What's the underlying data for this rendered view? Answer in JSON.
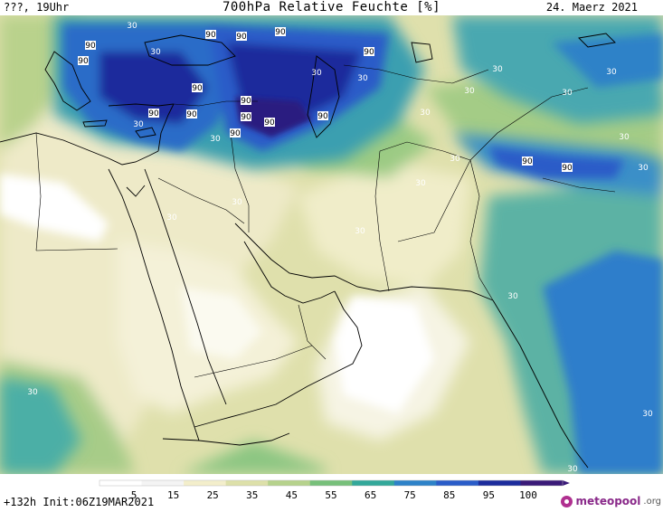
{
  "header": {
    "location": "???, 19Uhr",
    "title": "700hPa Relative Feuchte [%]",
    "date": "24. Maerz 2021"
  },
  "footer": {
    "forecast": "+132h Init:06Z19MAR2021",
    "brand": "meteopool",
    "brand_tld": ".org"
  },
  "legend": {
    "ticks": [
      "5",
      "15",
      "25",
      "35",
      "45",
      "55",
      "65",
      "75",
      "85",
      "95",
      "100"
    ],
    "colors": [
      "#ffffff",
      "#f4f4f4",
      "#f3eecb",
      "#dde0a9",
      "#b6d28c",
      "#77c07a",
      "#33a89a",
      "#2d82c8",
      "#2a5cc8",
      "#1c2c9c",
      "#3a1a78"
    ]
  },
  "map": {
    "contour_labels": [
      {
        "text": "90"
      },
      {
        "text": "90"
      },
      {
        "text": "90"
      },
      {
        "text": "90"
      },
      {
        "text": "90"
      },
      {
        "text": "90"
      },
      {
        "text": "90"
      },
      {
        "text": "90"
      },
      {
        "text": "90"
      },
      {
        "text": "90"
      },
      {
        "text": "90"
      },
      {
        "text": "90"
      },
      {
        "text": "90"
      },
      {
        "text": "90"
      },
      {
        "text": "90"
      },
      {
        "text": "90"
      },
      {
        "text": "30"
      },
      {
        "text": "30"
      },
      {
        "text": "30"
      },
      {
        "text": "30"
      },
      {
        "text": "30"
      },
      {
        "text": "30"
      },
      {
        "text": "30"
      },
      {
        "text": "30"
      },
      {
        "text": "30"
      },
      {
        "text": "30"
      },
      {
        "text": "30"
      },
      {
        "text": "30"
      },
      {
        "text": "30"
      },
      {
        "text": "30"
      },
      {
        "text": "30"
      },
      {
        "text": "30"
      },
      {
        "text": "30"
      },
      {
        "text": "30"
      },
      {
        "text": "30"
      },
      {
        "text": "30"
      },
      {
        "text": "30"
      },
      {
        "text": "30"
      }
    ]
  }
}
